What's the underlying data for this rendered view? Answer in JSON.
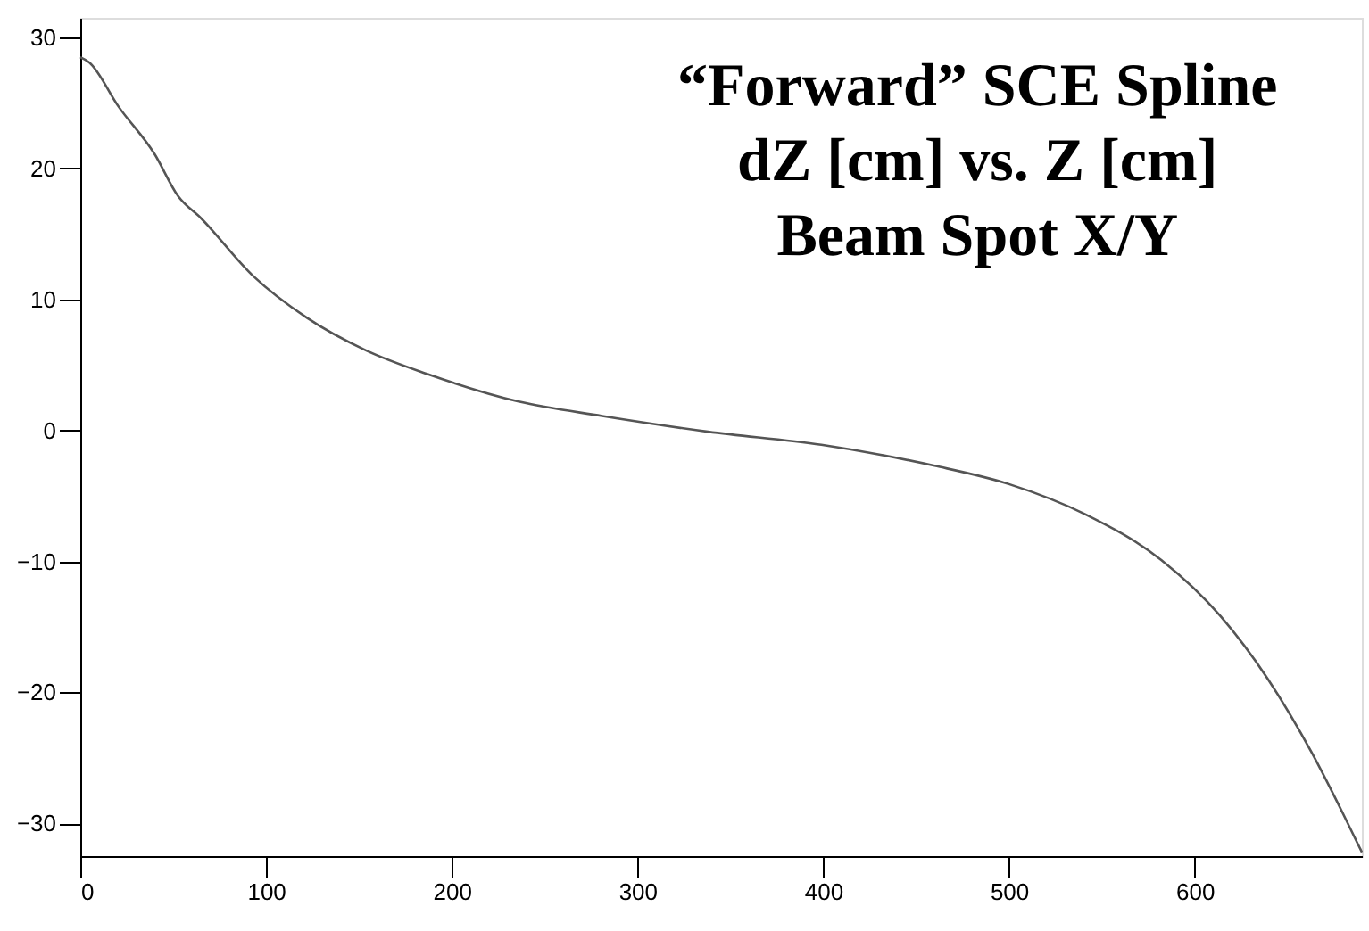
{
  "chart_data": {
    "type": "line",
    "title": "“Forward” SCE Spline\ndZ [cm] vs. Z [cm]\nBeam Spot X/Y",
    "x": [
      0,
      4.8,
      20.7,
      40,
      52.6,
      65,
      93,
      122,
      154,
      187,
      236,
      281,
      338,
      399,
      460,
      500,
      541,
      582,
      614,
      639,
      663,
      680,
      690
    ],
    "series": [
      {
        "color": "#555555",
        "values": [
          28.5,
          28.1,
          24.7,
          21.1,
          17.9,
          16.2,
          11.8,
          8.6,
          6.1,
          4.3,
          2.2,
          1.1,
          -0.1,
          -1.1,
          -2.7,
          -4.1,
          -6.4,
          -9.9,
          -14.2,
          -18.9,
          -24.6,
          -29.3,
          -32.2
        ]
      }
    ],
    "xlim": [
      0,
      690
    ],
    "ylim": [
      -32.5,
      31.5
    ],
    "xticks": [
      0,
      100,
      200,
      300,
      400,
      500,
      600
    ],
    "yticks": [
      -30,
      -20,
      -10,
      0,
      10,
      20,
      30
    ],
    "grid": false,
    "marker": "none",
    "line_style": "solid"
  }
}
